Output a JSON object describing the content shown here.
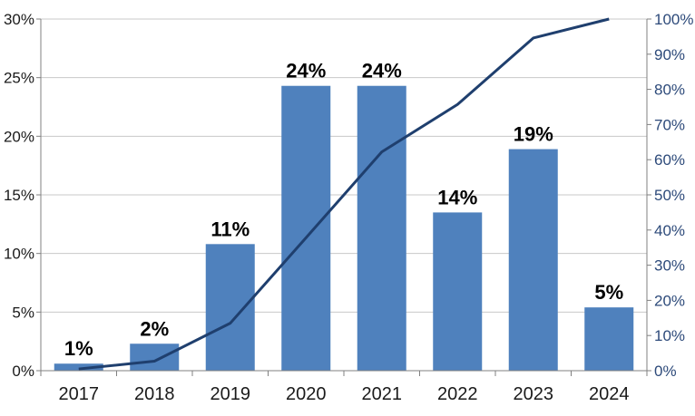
{
  "chart_data": {
    "type": "bar",
    "categories": [
      "2017",
      "2018",
      "2019",
      "2020",
      "2021",
      "2022",
      "2023",
      "2024"
    ],
    "series": [
      {
        "type": "bar",
        "axis": "left",
        "values": [
          0.6,
          2.3,
          10.8,
          24.3,
          24.3,
          13.5,
          18.9,
          5.4
        ],
        "labels": [
          "1%",
          "2%",
          "11%",
          "24%",
          "24%",
          "14%",
          "19%",
          "5%"
        ],
        "color": "#4f81bd"
      },
      {
        "type": "line",
        "axis": "right",
        "values": [
          0.5,
          2.7,
          13.5,
          37.8,
          62.2,
          75.7,
          94.6,
          100
        ],
        "color": "#1f3f6e"
      }
    ],
    "y_left": {
      "min": 0,
      "max": 30,
      "step": 5,
      "tick_labels": [
        "0%",
        "5%",
        "10%",
        "15%",
        "20%",
        "25%",
        "30%"
      ]
    },
    "y_right": {
      "min": 0,
      "max": 100,
      "step": 10,
      "tick_labels": [
        "0%",
        "10%",
        "20%",
        "30%",
        "40%",
        "50%",
        "60%",
        "70%",
        "80%",
        "90%",
        "100%"
      ]
    },
    "title": "",
    "xlabel": "",
    "ylabel": "",
    "grid": "horizontal",
    "legend": "none",
    "colors": {
      "gridline": "#c8c8c8",
      "axis": "#808080",
      "right_axis_text": "#2d4a7a"
    }
  }
}
